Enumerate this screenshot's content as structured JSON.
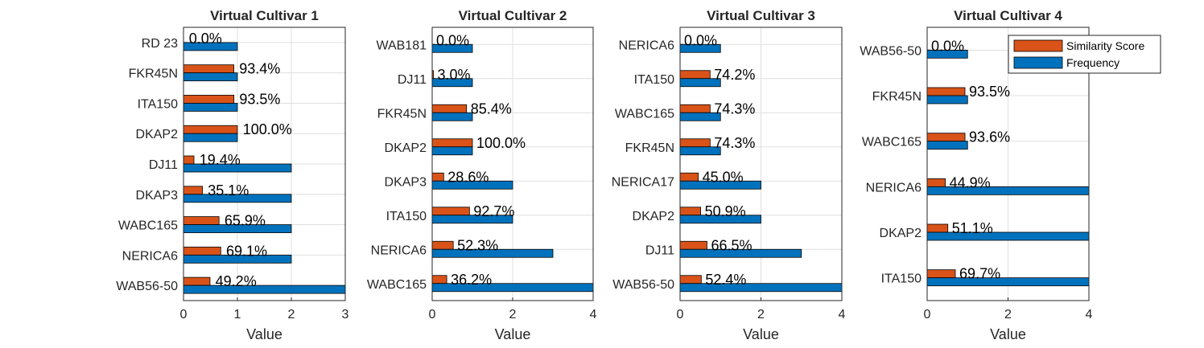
{
  "colors": {
    "similarity": "#D95319",
    "frequency": "#0072BD"
  },
  "legend": {
    "entries": [
      "Similarity Score",
      "Frequency"
    ],
    "placement": "top-right of Virtual Cultivar 4"
  },
  "chart_data": [
    {
      "type": "bar",
      "orientation": "horizontal",
      "title": "Virtual Cultivar 1",
      "xlabel": "Value",
      "xlim": [
        0,
        3
      ],
      "xticks": [
        "0",
        "1",
        "2",
        "3"
      ],
      "grid": true,
      "categories": [
        "RD 23",
        "FKR45N",
        "ITA150",
        "DKAP2",
        "DJ11",
        "DKAP3",
        "WABC165",
        "NERICA6",
        "WAB56-50"
      ],
      "series": [
        {
          "name": "Similarity Score",
          "values": [
            0.0,
            0.934,
            0.935,
            1.0,
            0.194,
            0.351,
            0.659,
            0.691,
            0.492
          ]
        },
        {
          "name": "Frequency",
          "values": [
            1,
            1,
            1,
            1,
            2,
            2,
            2,
            2,
            3
          ]
        }
      ],
      "labels": [
        "0.0%",
        "93.4%",
        "93.5%",
        "100.0%",
        "19.4%",
        "35.1%",
        "65.9%",
        "69.1%",
        "49.2%"
      ]
    },
    {
      "type": "bar",
      "orientation": "horizontal",
      "title": "Virtual Cultivar 2",
      "xlabel": "Value",
      "xlim": [
        0,
        4
      ],
      "xticks": [
        "0",
        "2",
        "4"
      ],
      "grid": true,
      "categories": [
        "WAB181",
        "DJ11",
        "FKR45N",
        "DKAP2",
        "DKAP3",
        "ITA150",
        "NERICA6",
        "WABC165"
      ],
      "series": [
        {
          "name": "Similarity Score",
          "values": [
            0.0,
            0.03,
            0.854,
            1.0,
            0.286,
            0.927,
            0.523,
            0.362
          ]
        },
        {
          "name": "Frequency",
          "values": [
            1,
            1,
            1,
            1,
            2,
            2,
            3,
            4
          ]
        }
      ],
      "labels": [
        "0.0%",
        "3.0%",
        "85.4%",
        "100.0%",
        "28.6%",
        "92.7%",
        "52.3%",
        "36.2%"
      ]
    },
    {
      "type": "bar",
      "orientation": "horizontal",
      "title": "Virtual Cultivar 3",
      "xlabel": "Value",
      "xlim": [
        0,
        4
      ],
      "xticks": [
        "0",
        "2",
        "4"
      ],
      "grid": true,
      "categories": [
        "NERICA6",
        "ITA150",
        "WABC165",
        "FKR45N",
        "NERICA17",
        "DKAP2",
        "DJ11",
        "WAB56-50"
      ],
      "series": [
        {
          "name": "Similarity Score",
          "values": [
            0.0,
            0.742,
            0.743,
            0.743,
            0.45,
            0.509,
            0.665,
            0.524
          ]
        },
        {
          "name": "Frequency",
          "values": [
            1,
            1,
            1,
            1,
            2,
            2,
            3,
            4
          ]
        }
      ],
      "labels": [
        "0.0%",
        "74.2%",
        "74.3%",
        "74.3%",
        "45.0%",
        "50.9%",
        "66.5%",
        "52.4%"
      ]
    },
    {
      "type": "bar",
      "orientation": "horizontal",
      "title": "Virtual Cultivar 4",
      "xlabel": "Value",
      "xlim": [
        0,
        4
      ],
      "xticks": [
        "0",
        "2",
        "4"
      ],
      "grid": true,
      "categories": [
        "WAB56-50",
        "FKR45N",
        "WABC165",
        "NERICA6",
        "DKAP2",
        "ITA150"
      ],
      "series": [
        {
          "name": "Similarity Score",
          "values": [
            0.0,
            0.935,
            0.936,
            0.449,
            0.511,
            0.697
          ]
        },
        {
          "name": "Frequency",
          "values": [
            1,
            1,
            1,
            4,
            4,
            4
          ]
        }
      ],
      "labels": [
        "0.0%",
        "93.5%",
        "93.6%",
        "44.9%",
        "51.1%",
        "69.7%"
      ]
    }
  ]
}
